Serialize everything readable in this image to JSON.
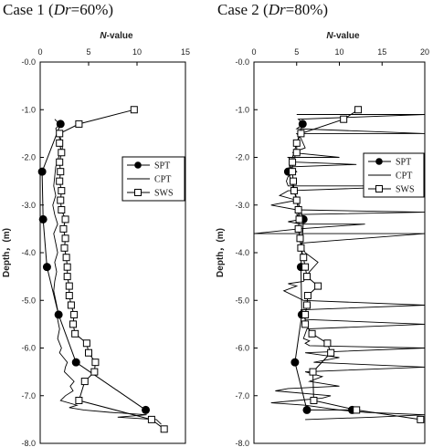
{
  "chart_data": [
    {
      "type": "line",
      "title_prefix": "Case 1 (",
      "title_italic": "Dr",
      "title_suffix": "=60%)",
      "xlabel_italic": "N",
      "xlabel_rest": "-value",
      "ylabel": "Depth，(m)",
      "xlim": [
        0,
        15
      ],
      "ylim": [
        -8.0,
        0.0
      ],
      "xticks": [
        0,
        5,
        10,
        15
      ],
      "yticks": [
        "-0.0",
        "-1.0",
        "-2.0",
        "-3.0",
        "-4.0",
        "-5.0",
        "-6.0",
        "-7.0",
        "-8.0"
      ],
      "legend": [
        "SPT",
        "CPT",
        "SWS"
      ],
      "legend_position": "right-middle",
      "series": [
        {
          "name": "SPT",
          "marker": "filled-circle",
          "x": [
            2.1,
            0.2,
            0.3,
            0.7,
            1.9,
            3.7,
            10.9
          ],
          "y": [
            -1.3,
            -2.3,
            -3.3,
            -4.3,
            -5.3,
            -6.3,
            -7.3
          ]
        },
        {
          "name": "CPT",
          "marker": "none",
          "x": [
            1.5,
            2.0,
            1.6,
            2.1,
            2.3,
            1.9,
            1.6,
            1.5,
            1.4,
            1.6,
            1.3,
            1.5,
            1.8,
            1.4,
            1.6,
            1.8,
            1.5,
            1.7,
            1.5,
            1.4,
            1.6,
            1.8,
            1.8,
            2.0,
            1.8,
            2.2,
            2.0,
            2.4,
            2.8,
            2.6,
            2.5,
            3.0,
            3.5,
            3.1,
            3.4,
            2.6,
            2.1,
            3.8,
            3.0,
            4.5,
            7.2,
            11.0,
            8.0,
            12.0,
            12.5
          ],
          "y": [
            -1.2,
            -1.3,
            -1.4,
            -1.6,
            -1.8,
            -2.0,
            -2.2,
            -2.4,
            -2.6,
            -2.8,
            -3.0,
            -3.2,
            -3.4,
            -3.6,
            -3.8,
            -4.0,
            -4.2,
            -4.4,
            -4.6,
            -4.8,
            -5.0,
            -5.2,
            -5.4,
            -5.6,
            -5.8,
            -6.0,
            -6.1,
            -6.2,
            -6.3,
            -6.4,
            -6.5,
            -6.6,
            -6.7,
            -6.8,
            -6.9,
            -7.0,
            -7.1,
            -7.2,
            -7.25,
            -7.3,
            -7.35,
            -7.4,
            -7.45,
            -7.5,
            -7.6
          ]
        },
        {
          "name": "SWS",
          "marker": "open-square",
          "x": [
            9.7,
            4.0,
            2.0,
            2.0,
            2.2,
            2.0,
            2.1,
            2.0,
            2.2,
            2.1,
            2.2,
            2.6,
            2.4,
            2.6,
            2.5,
            2.7,
            2.8,
            2.8,
            3.0,
            3.0,
            3.2,
            3.5,
            3.4,
            3.6,
            4.8,
            5.0,
            5.7,
            5.6,
            4.6,
            4.0,
            11.5,
            12.8
          ],
          "y": [
            -1.0,
            -1.3,
            -1.5,
            -1.7,
            -1.9,
            -2.1,
            -2.3,
            -2.5,
            -2.7,
            -2.9,
            -3.1,
            -3.3,
            -3.5,
            -3.7,
            -3.9,
            -4.1,
            -4.3,
            -4.5,
            -4.7,
            -4.9,
            -5.1,
            -5.3,
            -5.5,
            -5.7,
            -5.9,
            -6.1,
            -6.3,
            -6.5,
            -6.7,
            -7.1,
            -7.5,
            -7.7
          ]
        }
      ]
    },
    {
      "type": "line",
      "title_prefix": "Case 2 (",
      "title_italic": "Dr",
      "title_suffix": "=80%)",
      "xlabel_italic": "N",
      "xlabel_rest": "-value",
      "ylabel": "Depth，(m)",
      "xlim": [
        0,
        20
      ],
      "ylim": [
        -8.0,
        0.0
      ],
      "xticks": [
        0,
        5,
        10,
        15,
        20
      ],
      "yticks": [
        "-0.0",
        "-1.0",
        "-2.0",
        "-3.0",
        "-4.0",
        "-5.0",
        "-6.0",
        "-7.0",
        "-8.0"
      ],
      "legend": [
        "SPT",
        "CPT",
        "SWS"
      ],
      "legend_position": "right-middle",
      "series": [
        {
          "name": "SPT",
          "marker": "filled-circle",
          "x": [
            5.7,
            4.0,
            5.8,
            5.5,
            5.6,
            4.8,
            6.2,
            11.5
          ],
          "y": [
            -1.3,
            -2.3,
            -3.3,
            -4.3,
            -5.3,
            -6.3,
            -7.3,
            -7.3
          ]
        },
        {
          "name": "CPT",
          "marker": "none",
          "x": [
            5.0,
            20.0,
            5.2,
            5.8,
            5.0,
            20.0,
            5.0,
            5.5,
            6.0,
            4.5,
            10.0,
            4.0,
            4.8,
            12.0,
            4.2,
            5.0,
            4.0,
            3.8,
            4.0,
            20.0,
            4.0,
            3.0,
            5.0,
            2.0,
            5.0,
            20.0,
            5.0,
            5.5,
            4.0,
            5.5,
            13.0,
            5.2,
            0.0,
            20.0,
            5.5,
            6.0,
            7.5,
            6.5,
            5.8,
            4.0,
            5.0,
            3.5,
            5.8,
            20.0,
            5.5,
            6.0,
            20.0,
            6.2,
            5.8,
            6.5,
            6.0,
            6.5,
            20.0,
            6.0,
            10.0,
            7.0,
            20.0,
            6.0,
            8.0,
            6.5,
            10.0,
            4.0,
            2.5,
            9.0,
            8.0,
            5.0,
            2.0,
            6.0,
            8.0,
            10.0,
            13.0,
            20.0,
            14.0,
            6.0
          ],
          "y": [
            -1.1,
            -1.1,
            -1.2,
            -1.3,
            -1.4,
            -1.5,
            -1.5,
            -1.6,
            -1.8,
            -1.9,
            -2.0,
            -2.0,
            -2.1,
            -2.15,
            -2.2,
            -2.3,
            -2.4,
            -2.5,
            -2.6,
            -2.6,
            -2.7,
            -2.8,
            -2.9,
            -3.0,
            -3.1,
            -3.15,
            -3.2,
            -3.3,
            -3.35,
            -3.4,
            -3.4,
            -3.5,
            -3.6,
            -3.6,
            -3.8,
            -4.0,
            -4.2,
            -4.4,
            -4.6,
            -4.65,
            -4.7,
            -4.8,
            -5.0,
            -5.1,
            -5.2,
            -5.4,
            -5.5,
            -5.6,
            -5.8,
            -5.85,
            -5.9,
            -5.95,
            -6.0,
            -6.1,
            -6.2,
            -6.3,
            -6.4,
            -6.5,
            -6.6,
            -6.7,
            -6.8,
            -6.85,
            -6.9,
            -7.0,
            -7.05,
            -7.1,
            -7.15,
            -7.2,
            -7.25,
            -7.3,
            -7.35,
            -7.4,
            -7.45,
            -7.5
          ]
        },
        {
          "name": "SWS",
          "marker": "open-square",
          "x": [
            12.2,
            10.5,
            5.5,
            5.0,
            5.0,
            4.5,
            4.5,
            4.6,
            4.7,
            5.0,
            5.2,
            5.3,
            5.2,
            5.4,
            5.5,
            5.8,
            6.0,
            6.2,
            7.5,
            6.3,
            6.2,
            6.0,
            6.0,
            6.8,
            8.6,
            9.0,
            6.9,
            7.0,
            12.0,
            19.5
          ],
          "y": [
            -1.0,
            -1.2,
            -1.5,
            -1.7,
            -1.9,
            -2.1,
            -2.3,
            -2.5,
            -2.7,
            -2.9,
            -3.1,
            -3.3,
            -3.5,
            -3.7,
            -3.9,
            -4.1,
            -4.3,
            -4.5,
            -4.7,
            -4.9,
            -5.1,
            -5.3,
            -5.5,
            -5.7,
            -5.9,
            -6.1,
            -6.5,
            -7.1,
            -7.3,
            -7.5
          ]
        }
      ]
    }
  ]
}
